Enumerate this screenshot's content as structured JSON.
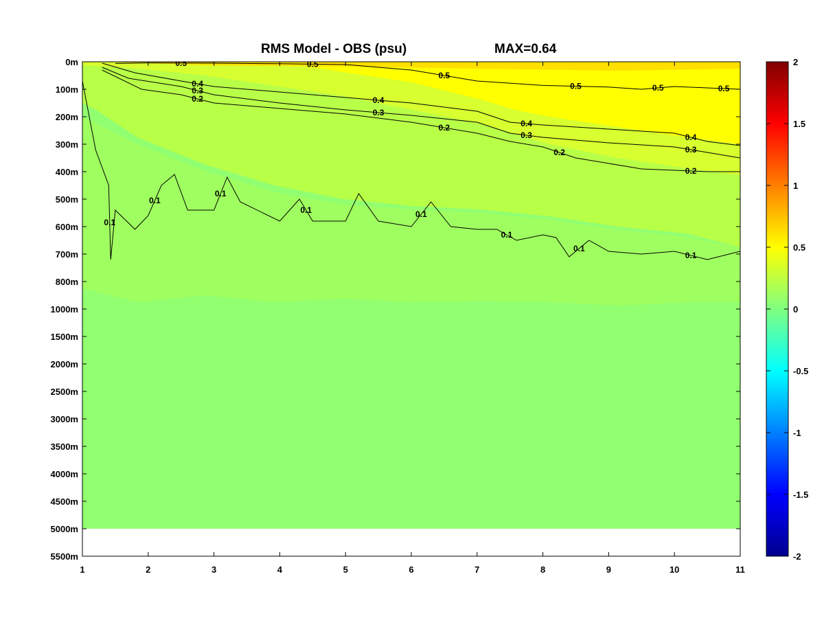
{
  "chart_data": {
    "type": "heatmap",
    "title": "RMS Model - OBS (psu)",
    "max_label": "MAX=0.64",
    "xlim": [
      1,
      11
    ],
    "x_ticks": [
      1,
      2,
      3,
      4,
      5,
      6,
      7,
      8,
      9,
      10,
      11
    ],
    "y_ticks": [
      "0m",
      "100m",
      "200m",
      "300m",
      "400m",
      "500m",
      "600m",
      "700m",
      "800m",
      "1000m",
      "1500m",
      "2000m",
      "2500m",
      "3000m",
      "3500m",
      "4000m",
      "4500m",
      "5000m",
      "5500m"
    ],
    "data_depth_limit_index": 17,
    "colorbar": {
      "range": [
        -2,
        2
      ],
      "ticks": [
        "2",
        "1.5",
        "1",
        "0.5",
        "0",
        "-0.5",
        "-1",
        "-1.5",
        "-2"
      ],
      "colormap": "jet"
    },
    "contours": [
      {
        "level": 0.5,
        "labels": [
          "0.5",
          "0.5",
          "0.5",
          "0.5",
          "0.5",
          "0.5"
        ],
        "points": [
          [
            1.5,
            0.06
          ],
          [
            2,
            0.04
          ],
          [
            3,
            0.05
          ],
          [
            4,
            0.07
          ],
          [
            5,
            0.1
          ],
          [
            6,
            0.3
          ],
          [
            7,
            0.7
          ],
          [
            8,
            0.86
          ],
          [
            9,
            0.92
          ],
          [
            9.5,
            1.0
          ],
          [
            10,
            0.9
          ],
          [
            10.5,
            0.95
          ],
          [
            11,
            1.0
          ]
        ]
      },
      {
        "level": 0.4,
        "labels": [
          "0.4",
          "0.4",
          "0.4",
          "0.4"
        ],
        "points": [
          [
            1.3,
            0.05
          ],
          [
            1.8,
            0.4
          ],
          [
            2.5,
            0.7
          ],
          [
            3,
            0.9
          ],
          [
            4,
            1.1
          ],
          [
            5,
            1.3
          ],
          [
            6,
            1.5
          ],
          [
            7,
            1.8
          ],
          [
            7.5,
            2.2
          ],
          [
            8,
            2.3
          ],
          [
            9,
            2.45
          ],
          [
            10,
            2.6
          ],
          [
            10.5,
            2.9
          ],
          [
            11,
            3.05
          ]
        ]
      },
      {
        "level": 0.3,
        "labels": [
          "0.3",
          "0.3",
          "0.3",
          "0.3"
        ],
        "points": [
          [
            1.3,
            0.2
          ],
          [
            1.7,
            0.6
          ],
          [
            2.5,
            0.9
          ],
          [
            3,
            1.2
          ],
          [
            4,
            1.5
          ],
          [
            5,
            1.75
          ],
          [
            6,
            1.95
          ],
          [
            7,
            2.2
          ],
          [
            7.5,
            2.6
          ],
          [
            8,
            2.75
          ],
          [
            9,
            2.95
          ],
          [
            10,
            3.1
          ],
          [
            10.5,
            3.3
          ],
          [
            11,
            3.5
          ]
        ]
      },
      {
        "level": 0.2,
        "labels": [
          "0.2",
          "0.2",
          "0.2",
          "0.2"
        ],
        "points": [
          [
            1.3,
            0.3
          ],
          [
            1.9,
            1.0
          ],
          [
            2.5,
            1.2
          ],
          [
            3,
            1.5
          ],
          [
            4,
            1.7
          ],
          [
            5,
            1.9
          ],
          [
            6,
            2.2
          ],
          [
            7,
            2.6
          ],
          [
            7.5,
            2.9
          ],
          [
            8,
            3.1
          ],
          [
            8.5,
            3.5
          ],
          [
            9,
            3.7
          ],
          [
            9.5,
            3.9
          ],
          [
            10,
            3.95
          ],
          [
            10.5,
            4.0
          ],
          [
            11,
            4.0
          ]
        ]
      },
      {
        "level": 0.1,
        "labels": [
          "0.1",
          "0.1",
          "0.1",
          "0.1",
          "0.1",
          "0.1",
          "0.1",
          "0.1"
        ],
        "points": [
          [
            1,
            0.7
          ],
          [
            1.2,
            3.2
          ],
          [
            1.4,
            4.5
          ],
          [
            1.43,
            7.2
          ],
          [
            1.5,
            5.4
          ],
          [
            1.8,
            6.1
          ],
          [
            2,
            5.6
          ],
          [
            2.2,
            4.5
          ],
          [
            2.4,
            4.1
          ],
          [
            2.6,
            5.4
          ],
          [
            3,
            5.4
          ],
          [
            3.2,
            4.2
          ],
          [
            3.4,
            5.1
          ],
          [
            4,
            5.8
          ],
          [
            4.3,
            5.0
          ],
          [
            4.5,
            5.8
          ],
          [
            5,
            5.8
          ],
          [
            5.2,
            4.8
          ],
          [
            5.5,
            5.8
          ],
          [
            6,
            6.0
          ],
          [
            6.3,
            5.1
          ],
          [
            6.6,
            6.0
          ],
          [
            7,
            6.1
          ],
          [
            7.3,
            6.1
          ],
          [
            7.6,
            6.5
          ],
          [
            8,
            6.3
          ],
          [
            8.2,
            6.4
          ],
          [
            8.4,
            7.1
          ],
          [
            8.7,
            6.5
          ],
          [
            9,
            6.9
          ],
          [
            9.5,
            7.0
          ],
          [
            10,
            6.9
          ],
          [
            10.5,
            7.2
          ],
          [
            11,
            6.9
          ]
        ]
      }
    ]
  }
}
